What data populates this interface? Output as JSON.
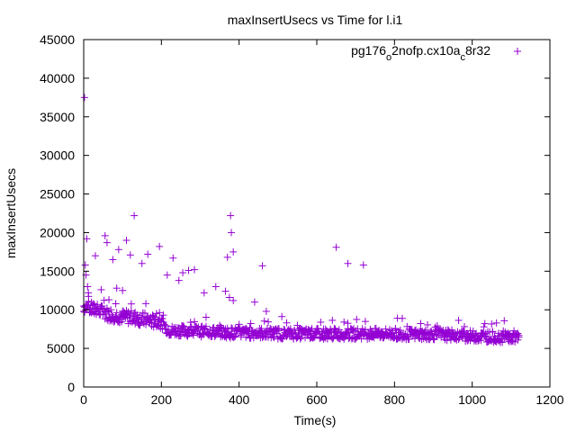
{
  "chart_data": {
    "type": "scatter",
    "title": "maxInsertUsecs vs Time for l.i1",
    "xlabel": "Time(s)",
    "ylabel": "maxInsertUsecs",
    "xlim": [
      0,
      1200
    ],
    "ylim": [
      0,
      45000
    ],
    "xticks": [
      "0",
      "200",
      "400",
      "600",
      "800",
      "1000",
      "1200"
    ],
    "yticks": [
      "0",
      "5000",
      "10000",
      "15000",
      "20000",
      "25000",
      "30000",
      "35000",
      "40000",
      "45000"
    ],
    "grid": false,
    "legend_position": "top-right",
    "marker": "plus",
    "color": "#9400d3",
    "series": [
      {
        "name": "pg176_o2nofp.cx10a_c8r32",
        "legend_parts": [
          {
            "text": "pg176",
            "sub": false
          },
          {
            "text": "o",
            "sub": true
          },
          {
            "text": "2nofp.cx10a",
            "sub": false
          },
          {
            "text": "c",
            "sub": true
          },
          {
            "text": "8r32",
            "sub": false
          }
        ],
        "points": [
          [
            2,
            37500
          ],
          [
            4,
            15800
          ],
          [
            6,
            14500
          ],
          [
            8,
            19200
          ],
          [
            10,
            13000
          ],
          [
            12,
            12200
          ],
          [
            30,
            17000
          ],
          [
            55,
            19600
          ],
          [
            60,
            18700
          ],
          [
            75,
            16500
          ],
          [
            90,
            17800
          ],
          [
            110,
            19000
          ],
          [
            120,
            17100
          ],
          [
            130,
            22200
          ],
          [
            150,
            16000
          ],
          [
            165,
            17200
          ],
          [
            195,
            18200
          ],
          [
            215,
            14500
          ],
          [
            230,
            16700
          ],
          [
            245,
            13800
          ],
          [
            255,
            14800
          ],
          [
            270,
            15100
          ],
          [
            285,
            15200
          ],
          [
            310,
            12200
          ],
          [
            340,
            13000
          ],
          [
            365,
            12400
          ],
          [
            370,
            16800
          ],
          [
            378,
            22200
          ],
          [
            380,
            20000
          ],
          [
            385,
            17500
          ],
          [
            460,
            15700
          ],
          [
            650,
            18100
          ],
          [
            680,
            16000
          ],
          [
            720,
            15800
          ],
          [
            45,
            12600
          ],
          [
            65,
            11300
          ],
          [
            85,
            12800
          ],
          [
            100,
            12500
          ],
          [
            160,
            10800
          ],
          [
            375,
            11600
          ],
          [
            385,
            11200
          ],
          [
            440,
            11000
          ],
          [
            470,
            9800
          ]
        ],
        "band": [
          [
            0,
            10500
          ],
          [
            20,
            10100
          ],
          [
            40,
            9800
          ],
          [
            60,
            9500
          ],
          [
            80,
            9300
          ],
          [
            100,
            9100
          ],
          [
            120,
            9000
          ],
          [
            140,
            8900
          ],
          [
            160,
            8700
          ],
          [
            180,
            8500
          ],
          [
            200,
            8300
          ],
          [
            220,
            7300
          ],
          [
            250,
            7300
          ],
          [
            300,
            7200
          ],
          [
            350,
            7100
          ],
          [
            400,
            7000
          ],
          [
            450,
            7000
          ],
          [
            500,
            6900
          ],
          [
            550,
            6900
          ],
          [
            600,
            6900
          ],
          [
            650,
            6900
          ],
          [
            700,
            6900
          ],
          [
            750,
            6900
          ],
          [
            800,
            6900
          ],
          [
            850,
            6800
          ],
          [
            900,
            6800
          ],
          [
            950,
            6700
          ],
          [
            1000,
            6600
          ],
          [
            1050,
            6500
          ],
          [
            1100,
            6400
          ],
          [
            1120,
            6300
          ]
        ]
      }
    ]
  }
}
